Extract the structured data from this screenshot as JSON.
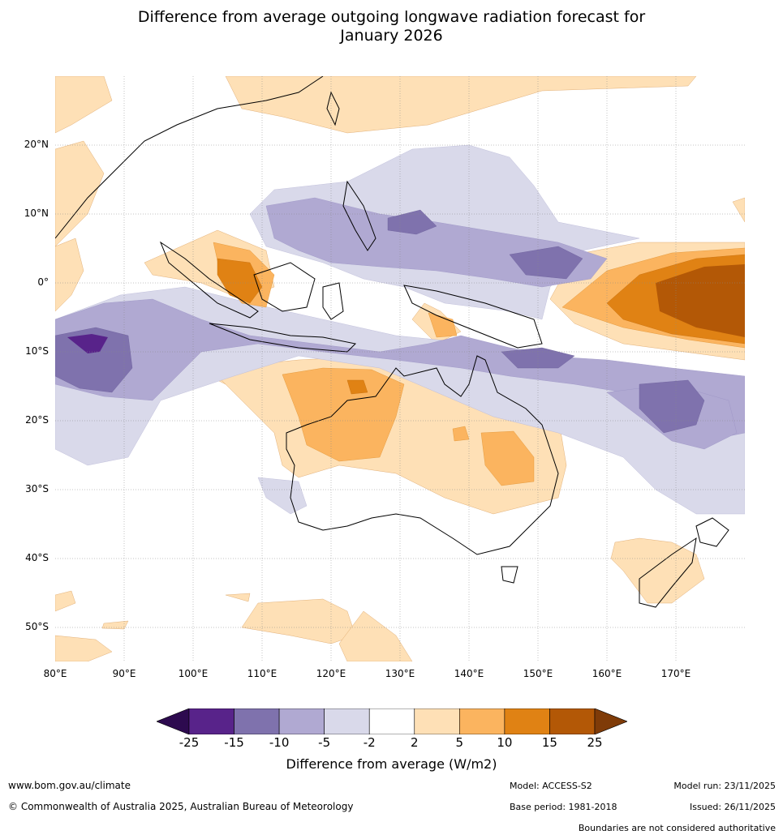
{
  "title_line1": "Difference from average outgoing longwave radiation forecast for",
  "title_line2": "January 2026",
  "lat_labels": [
    "20°N",
    "10°N",
    "0°",
    "10°S",
    "20°S",
    "30°S",
    "40°S",
    "50°S"
  ],
  "lon_labels": [
    "80°E",
    "90°E",
    "100°E",
    "110°E",
    "120°E",
    "130°E",
    "140°E",
    "150°E",
    "160°E",
    "170°E"
  ],
  "colorbar": {
    "ticks": [
      "-25",
      "-15",
      "-10",
      "-5",
      "-2",
      "2",
      "5",
      "10",
      "15",
      "25"
    ],
    "colors": [
      "#2d0a4f",
      "#58238a",
      "#7f72ad",
      "#b0a9d2",
      "#d9d9ea",
      "#ffffff",
      "#fee0b6",
      "#fbb45f",
      "#e08214",
      "#b35806",
      "#7f3b08"
    ],
    "label": "Difference from average (W/m2)"
  },
  "footer": {
    "website": "www.bom.gov.au/climate",
    "copyright": "© Commonwealth of Australia 2025, Australian Bureau of Meteorology",
    "model": "Model: ACCESS-S2",
    "base_period": "Base period: 1981-2018",
    "model_run": "Model run: 23/11/2025",
    "issued": "Issued: 26/11/2025",
    "disclaimer": "Boundaries are not considered authoritative"
  }
}
